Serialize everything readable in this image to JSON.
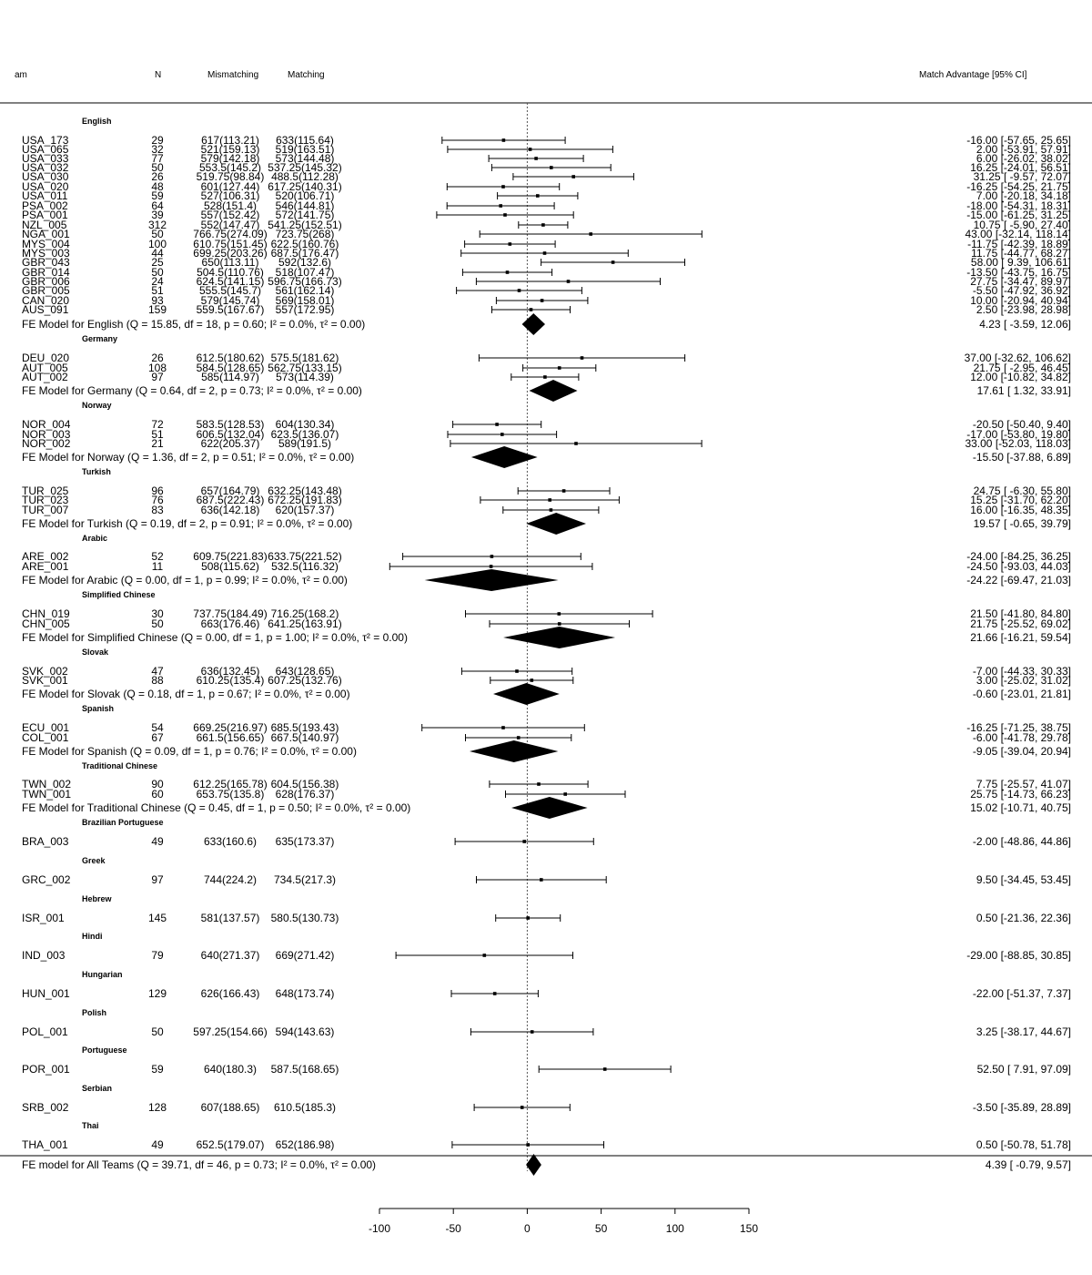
{
  "chart_data": {
    "type": "forest",
    "headers": {
      "team": "am",
      "n": "N",
      "mismatching": "Mismatching",
      "matching": "Matching",
      "effect": "Match Advantage [95% CI]"
    },
    "x_axis": {
      "xlim": [
        -100,
        150
      ],
      "ticks": [
        -100,
        -50,
        0,
        50,
        100,
        150
      ],
      "reference_line": 0
    },
    "groups": [
      {
        "name": "English",
        "studies": [
          {
            "team": "USA_173",
            "n": "29",
            "mismatching": "617(113.21)",
            "matching": "633(115.64)",
            "est": -16.0,
            "lo": -57.65,
            "hi": 25.65,
            "ci_text": "-16.00 [-57.65,  25.65]"
          },
          {
            "team": "USA_065",
            "n": "32",
            "mismatching": "521(159.13)",
            "matching": "519(163.51)",
            "est": 2.0,
            "lo": -53.91,
            "hi": 57.91,
            "ci_text": "2.00 [-53.91,  57.91]"
          },
          {
            "team": "USA_033",
            "n": "77",
            "mismatching": "579(142.18)",
            "matching": "573(144.48)",
            "est": 6.0,
            "lo": -26.02,
            "hi": 38.02,
            "ci_text": "6.00 [-26.02,  38.02]"
          },
          {
            "team": "USA_032",
            "n": "50",
            "mismatching": "553.5(145.2)",
            "matching": "537.25(145.32)",
            "est": 16.25,
            "lo": -24.01,
            "hi": 56.51,
            "ci_text": "16.25 [-24.01,  56.51]"
          },
          {
            "team": "USA_030",
            "n": "26",
            "mismatching": "519.75(98.84)",
            "matching": "488.5(112.28)",
            "est": 31.25,
            "lo": -9.57,
            "hi": 72.07,
            "ci_text": "31.25 [ -9.57,  72.07]"
          },
          {
            "team": "USA_020",
            "n": "48",
            "mismatching": "601(127.44)",
            "matching": "617.25(140.31)",
            "est": -16.25,
            "lo": -54.25,
            "hi": 21.75,
            "ci_text": "-16.25 [-54.25,  21.75]"
          },
          {
            "team": "USA_011",
            "n": "59",
            "mismatching": "527(106.31)",
            "matching": "520(106.71)",
            "est": 7.0,
            "lo": -20.18,
            "hi": 34.18,
            "ci_text": "7.00 [-20.18,  34.18]"
          },
          {
            "team": "PSA_002",
            "n": "64",
            "mismatching": "528(151.4)",
            "matching": "546(144.81)",
            "est": -18.0,
            "lo": -54.31,
            "hi": 18.31,
            "ci_text": "-18.00 [-54.31,  18.31]"
          },
          {
            "team": "PSA_001",
            "n": "39",
            "mismatching": "557(152.42)",
            "matching": "572(141.75)",
            "est": -15.0,
            "lo": -61.25,
            "hi": 31.25,
            "ci_text": "-15.00 [-61.25,  31.25]"
          },
          {
            "team": "NZL_005",
            "n": "312",
            "mismatching": "552(147.47)",
            "matching": "541.25(152.51)",
            "est": 10.75,
            "lo": -5.9,
            "hi": 27.4,
            "ci_text": "10.75 [ -5.90,  27.40]"
          },
          {
            "team": "NGA_001",
            "n": "50",
            "mismatching": "766.75(274.09)",
            "matching": "723.75(268)",
            "est": 43.0,
            "lo": -32.14,
            "hi": 118.14,
            "ci_text": "43.00 [-32.14, 118.14]"
          },
          {
            "team": "MYS_004",
            "n": "100",
            "mismatching": "610.75(151.45)",
            "matching": "622.5(160.76)",
            "est": -11.75,
            "lo": -42.39,
            "hi": 18.89,
            "ci_text": "-11.75 [-42.39,  18.89]"
          },
          {
            "team": "MYS_003",
            "n": "44",
            "mismatching": "699.25(203.26)",
            "matching": "687.5(176.47)",
            "est": 11.75,
            "lo": -44.77,
            "hi": 68.27,
            "ci_text": "11.75 [-44.77,  68.27]"
          },
          {
            "team": "GBR_043",
            "n": "25",
            "mismatching": "650(113.11)",
            "matching": "592(132.6)",
            "est": 58.0,
            "lo": 9.39,
            "hi": 106.61,
            "ci_text": "58.00 [  9.39, 106.61]"
          },
          {
            "team": "GBR_014",
            "n": "50",
            "mismatching": "504.5(110.76)",
            "matching": "518(107.47)",
            "est": -13.5,
            "lo": -43.75,
            "hi": 16.75,
            "ci_text": "-13.50 [-43.75,  16.75]"
          },
          {
            "team": "GBR_006",
            "n": "24",
            "mismatching": "624.5(141.15)",
            "matching": "596.75(166.73)",
            "est": 27.75,
            "lo": -34.47,
            "hi": 89.97,
            "ci_text": "27.75 [-34.47,  89.97]"
          },
          {
            "team": "GBR_005",
            "n": "51",
            "mismatching": "555.5(145.7)",
            "matching": "561(162.14)",
            "est": -5.5,
            "lo": -47.92,
            "hi": 36.92,
            "ci_text": "-5.50 [-47.92,  36.92]"
          },
          {
            "team": "CAN_020",
            "n": "93",
            "mismatching": "579(145.74)",
            "matching": "569(158.01)",
            "est": 10.0,
            "lo": -20.94,
            "hi": 40.94,
            "ci_text": "10.00 [-20.94,  40.94]"
          },
          {
            "team": "AUS_091",
            "n": "159",
            "mismatching": "559.5(167.67)",
            "matching": "557(172.95)",
            "est": 2.5,
            "lo": -23.98,
            "hi": 28.98,
            "ci_text": "2.50 [-23.98,  28.98]"
          }
        ],
        "model": {
          "label": "FE Model for English (Q = 15.85, df = 18, p = 0.60; I² = 0.0%, τ² = 0.00)",
          "est": 4.23,
          "lo": -3.59,
          "hi": 12.06,
          "ci_text": "4.23 [ -3.59,  12.06]"
        }
      },
      {
        "name": "Germany",
        "studies": [
          {
            "team": "DEU_020",
            "n": "26",
            "mismatching": "612.5(180.62)",
            "matching": "575.5(181.62)",
            "est": 37.0,
            "lo": -32.62,
            "hi": 106.62,
            "ci_text": "37.00 [-32.62, 106.62]"
          },
          {
            "team": "AUT_005",
            "n": "108",
            "mismatching": "584.5(128.65)",
            "matching": "562.75(133.15)",
            "est": 21.75,
            "lo": -2.95,
            "hi": 46.45,
            "ci_text": "21.75 [ -2.95,  46.45]"
          },
          {
            "team": "AUT_002",
            "n": "97",
            "mismatching": "585(114.97)",
            "matching": "573(114.39)",
            "est": 12.0,
            "lo": -10.82,
            "hi": 34.82,
            "ci_text": "12.00 [-10.82,  34.82]"
          }
        ],
        "model": {
          "label": "FE Model for Germany (Q = 0.64, df = 2, p = 0.73; I² = 0.0%, τ² = 0.00)",
          "est": 17.61,
          "lo": 1.32,
          "hi": 33.91,
          "ci_text": "17.61 [  1.32,  33.91]"
        }
      },
      {
        "name": "Norway",
        "studies": [
          {
            "team": "NOR_004",
            "n": "72",
            "mismatching": "583.5(128.53)",
            "matching": "604(130.34)",
            "est": -20.5,
            "lo": -50.4,
            "hi": 9.4,
            "ci_text": "-20.50 [-50.40,   9.40]"
          },
          {
            "team": "NOR_003",
            "n": "51",
            "mismatching": "606.5(132.04)",
            "matching": "623.5(136.07)",
            "est": -17.0,
            "lo": -53.8,
            "hi": 19.8,
            "ci_text": "-17.00 [-53.80,  19.80]"
          },
          {
            "team": "NOR_002",
            "n": "21",
            "mismatching": "622(205.37)",
            "matching": "589(191.5)",
            "est": 33.0,
            "lo": -52.03,
            "hi": 118.03,
            "ci_text": "33.00 [-52.03, 118.03]"
          }
        ],
        "model": {
          "label": "FE Model for Norway (Q = 1.36, df = 2, p = 0.51; I² = 0.0%, τ² = 0.00)",
          "est": -15.5,
          "lo": -37.88,
          "hi": 6.89,
          "ci_text": "-15.50 [-37.88,   6.89]"
        }
      },
      {
        "name": "Turkish",
        "studies": [
          {
            "team": "TUR_025",
            "n": "96",
            "mismatching": "657(164.79)",
            "matching": "632.25(143.48)",
            "est": 24.75,
            "lo": -6.3,
            "hi": 55.8,
            "ci_text": "24.75 [ -6.30,  55.80]"
          },
          {
            "team": "TUR_023",
            "n": "76",
            "mismatching": "687.5(222.43)",
            "matching": "672.25(191.83)",
            "est": 15.25,
            "lo": -31.7,
            "hi": 62.2,
            "ci_text": "15.25 [-31.70,  62.20]"
          },
          {
            "team": "TUR_007",
            "n": "83",
            "mismatching": "636(142.18)",
            "matching": "620(157.37)",
            "est": 16.0,
            "lo": -16.35,
            "hi": 48.35,
            "ci_text": "16.00 [-16.35,  48.35]"
          }
        ],
        "model": {
          "label": "FE Model for Turkish (Q = 0.19, df = 2, p = 0.91; I² = 0.0%, τ² = 0.00)",
          "est": 19.57,
          "lo": -0.65,
          "hi": 39.79,
          "ci_text": "19.57 [ -0.65,  39.79]"
        }
      },
      {
        "name": "Arabic",
        "studies": [
          {
            "team": "ARE_002",
            "n": "52",
            "mismatching": "609.75(221.83)",
            "matching": "633.75(221.52)",
            "est": -24.0,
            "lo": -84.25,
            "hi": 36.25,
            "ci_text": "-24.00 [-84.25,  36.25]"
          },
          {
            "team": "ARE_001",
            "n": "11",
            "mismatching": "508(115.62)",
            "matching": "532.5(116.32)",
            "est": -24.5,
            "lo": -93.03,
            "hi": 44.03,
            "ci_text": "-24.50 [-93.03,  44.03]"
          }
        ],
        "model": {
          "label": "FE Model for Arabic (Q = 0.00, df = 1, p = 0.99; I² = 0.0%, τ² = 0.00)",
          "est": -24.22,
          "lo": -69.47,
          "hi": 21.03,
          "ci_text": "-24.22 [-69.47,  21.03]"
        }
      },
      {
        "name": "Simplified Chinese",
        "studies": [
          {
            "team": "CHN_019",
            "n": "30",
            "mismatching": "737.75(184.49)",
            "matching": "716.25(168.2)",
            "est": 21.5,
            "lo": -41.8,
            "hi": 84.8,
            "ci_text": "21.50 [-41.80,  84.80]"
          },
          {
            "team": "CHN_005",
            "n": "50",
            "mismatching": "663(176.46)",
            "matching": "641.25(163.91)",
            "est": 21.75,
            "lo": -25.52,
            "hi": 69.02,
            "ci_text": "21.75 [-25.52,  69.02]"
          }
        ],
        "model": {
          "label": "FE Model for Simplified Chinese (Q = 0.00, df = 1, p = 1.00; I² = 0.0%, τ² = 0.00)",
          "est": 21.66,
          "lo": -16.21,
          "hi": 59.54,
          "ci_text": "21.66 [-16.21,  59.54]"
        }
      },
      {
        "name": "Slovak",
        "studies": [
          {
            "team": "SVK_002",
            "n": "47",
            "mismatching": "636(132.45)",
            "matching": "643(128.65)",
            "est": -7.0,
            "lo": -44.33,
            "hi": 30.33,
            "ci_text": "-7.00 [-44.33,  30.33]"
          },
          {
            "team": "SVK_001",
            "n": "88",
            "mismatching": "610.25(135.4)",
            "matching": "607.25(132.76)",
            "est": 3.0,
            "lo": -25.02,
            "hi": 31.02,
            "ci_text": "3.00 [-25.02,  31.02]"
          }
        ],
        "model": {
          "label": "FE Model for Slovak (Q = 0.18, df = 1, p = 0.67; I² = 0.0%, τ² = 0.00)",
          "est": -0.6,
          "lo": -23.01,
          "hi": 21.81,
          "ci_text": "-0.60 [-23.01,  21.81]"
        }
      },
      {
        "name": "Spanish",
        "studies": [
          {
            "team": "ECU_001",
            "n": "54",
            "mismatching": "669.25(216.97)",
            "matching": "685.5(193.43)",
            "est": -16.25,
            "lo": -71.25,
            "hi": 38.75,
            "ci_text": "-16.25 [-71.25,  38.75]"
          },
          {
            "team": "COL_001",
            "n": "67",
            "mismatching": "661.5(156.65)",
            "matching": "667.5(140.97)",
            "est": -6.0,
            "lo": -41.78,
            "hi": 29.78,
            "ci_text": "-6.00 [-41.78,  29.78]"
          }
        ],
        "model": {
          "label": "FE Model for Spanish (Q = 0.09, df = 1, p = 0.76; I² = 0.0%, τ² = 0.00)",
          "est": -9.05,
          "lo": -39.04,
          "hi": 20.94,
          "ci_text": "-9.05 [-39.04,  20.94]"
        }
      },
      {
        "name": "Traditional Chinese",
        "studies": [
          {
            "team": "TWN_002",
            "n": "90",
            "mismatching": "612.25(165.78)",
            "matching": "604.5(156.38)",
            "est": 7.75,
            "lo": -25.57,
            "hi": 41.07,
            "ci_text": "7.75 [-25.57,  41.07]"
          },
          {
            "team": "TWN_001",
            "n": "60",
            "mismatching": "653.75(135.8)",
            "matching": "628(176.37)",
            "est": 25.75,
            "lo": -14.73,
            "hi": 66.23,
            "ci_text": "25.75 [-14.73,  66.23]"
          }
        ],
        "model": {
          "label": "FE Model for Traditional Chinese (Q = 0.45, df = 1, p = 0.50; I² = 0.0%, τ² = 0.00)",
          "est": 15.02,
          "lo": -10.71,
          "hi": 40.75,
          "ci_text": "15.02 [-10.71,  40.75]"
        }
      },
      {
        "name": "Brazilian Portuguese",
        "studies": [
          {
            "team": "BRA_003",
            "n": "49",
            "mismatching": "633(160.6)",
            "matching": "635(173.37)",
            "est": -2.0,
            "lo": -48.86,
            "hi": 44.86,
            "ci_text": "-2.00 [-48.86,  44.86]"
          }
        ]
      },
      {
        "name": "Greek",
        "studies": [
          {
            "team": "GRC_002",
            "n": "97",
            "mismatching": "744(224.2)",
            "matching": "734.5(217.3)",
            "est": 9.5,
            "lo": -34.45,
            "hi": 53.45,
            "ci_text": "9.50 [-34.45,  53.45]"
          }
        ]
      },
      {
        "name": "Hebrew",
        "studies": [
          {
            "team": "ISR_001",
            "n": "145",
            "mismatching": "581(137.57)",
            "matching": "580.5(130.73)",
            "est": 0.5,
            "lo": -21.36,
            "hi": 22.36,
            "ci_text": "0.50 [-21.36,  22.36]"
          }
        ]
      },
      {
        "name": "Hindi",
        "studies": [
          {
            "team": "IND_003",
            "n": "79",
            "mismatching": "640(271.37)",
            "matching": "669(271.42)",
            "est": -29.0,
            "lo": -88.85,
            "hi": 30.85,
            "ci_text": "-29.00 [-88.85,  30.85]"
          }
        ]
      },
      {
        "name": "Hungarian",
        "studies": [
          {
            "team": "HUN_001",
            "n": "129",
            "mismatching": "626(166.43)",
            "matching": "648(173.74)",
            "est": -22.0,
            "lo": -51.37,
            "hi": 7.37,
            "ci_text": "-22.00 [-51.37,   7.37]"
          }
        ]
      },
      {
        "name": "Polish",
        "studies": [
          {
            "team": "POL_001",
            "n": "50",
            "mismatching": "597.25(154.66)",
            "matching": "594(143.63)",
            "est": 3.25,
            "lo": -38.17,
            "hi": 44.67,
            "ci_text": "3.25 [-38.17,  44.67]"
          }
        ]
      },
      {
        "name": "Portuguese",
        "studies": [
          {
            "team": "POR_001",
            "n": "59",
            "mismatching": "640(180.3)",
            "matching": "587.5(168.65)",
            "est": 52.5,
            "lo": 7.91,
            "hi": 97.09,
            "ci_text": "52.50 [  7.91,  97.09]"
          }
        ]
      },
      {
        "name": "Serbian",
        "studies": [
          {
            "team": "SRB_002",
            "n": "128",
            "mismatching": "607(188.65)",
            "matching": "610.5(185.3)",
            "est": -3.5,
            "lo": -35.89,
            "hi": 28.89,
            "ci_text": "-3.50 [-35.89,  28.89]"
          }
        ]
      },
      {
        "name": "Thai",
        "studies": [
          {
            "team": "THA_001",
            "n": "49",
            "mismatching": "652.5(179.07)",
            "matching": "652(186.98)",
            "est": 0.5,
            "lo": -50.78,
            "hi": 51.78,
            "ci_text": "0.50 [-50.78,  51.78]"
          }
        ]
      }
    ],
    "overall": {
      "label": "FE model for All Teams (Q = 39.71, df = 46, p = 0.73; I² = 0.0%, τ² = 0.00)",
      "est": 4.39,
      "lo": -0.79,
      "hi": 9.57,
      "ci_text": "4.39 [ -0.79,   9.57]"
    }
  }
}
